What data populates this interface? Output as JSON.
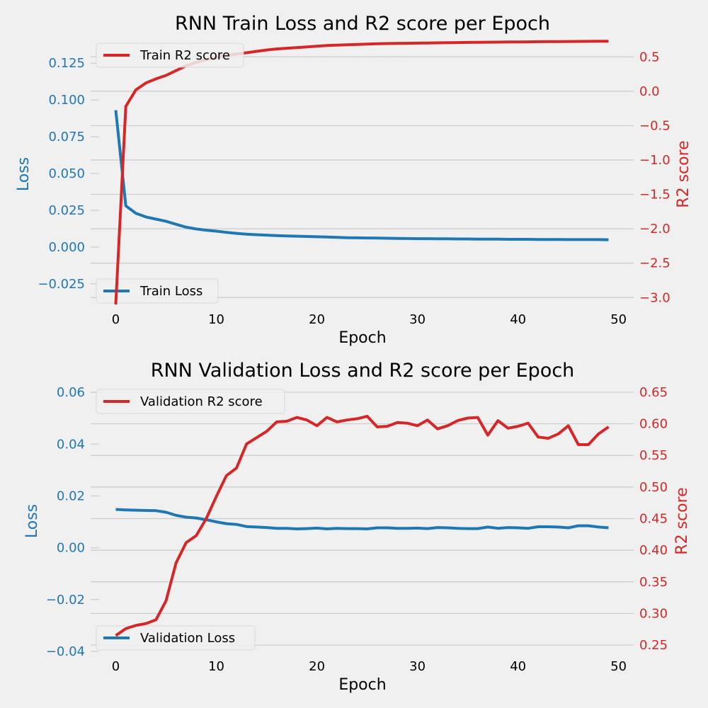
{
  "colors": {
    "background": "#f0f0f0",
    "grid": "#cbcbcb",
    "loss": "#1f77b4",
    "r2": "#d62728",
    "text": "#000000"
  },
  "chart_data": [
    {
      "type": "line",
      "title": "RNN Train Loss and R2 score per Epoch",
      "xlabel": "Epoch",
      "ylabel": "Loss",
      "y2label": "R2 score",
      "xlim": [
        -2.5,
        51.5
      ],
      "ylim": [
        -0.039,
        0.141
      ],
      "y2lim": [
        -3.1,
        0.75
      ],
      "xticks": [
        0,
        10,
        20,
        30,
        40,
        50
      ],
      "yticks": [
        -0.025,
        0.0,
        0.025,
        0.05,
        0.075,
        0.1,
        0.125
      ],
      "y2ticks": [
        -3.0,
        -2.5,
        -2.0,
        -1.5,
        -1.0,
        -0.5,
        0.0,
        0.5
      ],
      "xtick_labels": [
        "0",
        "10",
        "20",
        "30",
        "40",
        "50"
      ],
      "ytick_labels": [
        "−0.025",
        "0.000",
        "0.025",
        "0.050",
        "0.075",
        "0.100",
        "0.125"
      ],
      "y2tick_labels": [
        "−3.0",
        "−2.5",
        "−2.0",
        "−1.5",
        "−1.0",
        "−0.5",
        "0.0",
        "0.5"
      ],
      "grid": "horizontal (right axis)",
      "legend_loss": {
        "label": "Train Loss",
        "placement": "lower-left"
      },
      "legend_r2": {
        "label": "Train R2 score",
        "placement": "upper-left"
      },
      "series": [
        {
          "name": "Train Loss",
          "axis": "left",
          "x": [
            0,
            1,
            2,
            3,
            4,
            5,
            6,
            7,
            8,
            9,
            10,
            11,
            12,
            13,
            14,
            15,
            16,
            17,
            18,
            19,
            20,
            21,
            22,
            23,
            24,
            25,
            26,
            27,
            28,
            29,
            30,
            31,
            32,
            33,
            34,
            35,
            36,
            37,
            38,
            39,
            40,
            41,
            42,
            43,
            44,
            45,
            46,
            47,
            48,
            49
          ],
          "values": [
            0.093,
            0.028,
            0.023,
            0.0205,
            0.019,
            0.0175,
            0.0155,
            0.0135,
            0.0123,
            0.0115,
            0.0108,
            0.01,
            0.0093,
            0.0088,
            0.0084,
            0.0081,
            0.0078,
            0.0076,
            0.0074,
            0.0072,
            0.007,
            0.0068,
            0.0066,
            0.0064,
            0.0063,
            0.0062,
            0.0061,
            0.006,
            0.0059,
            0.0058,
            0.0057,
            0.0057,
            0.0056,
            0.0056,
            0.0055,
            0.0055,
            0.0054,
            0.0054,
            0.0054,
            0.0053,
            0.0053,
            0.0053,
            0.0052,
            0.0052,
            0.0052,
            0.0051,
            0.0051,
            0.0051,
            0.0051,
            0.005
          ]
        },
        {
          "name": "Train R2 score",
          "axis": "right",
          "x": [
            0,
            1,
            2,
            3,
            4,
            5,
            6,
            7,
            8,
            9,
            10,
            11,
            12,
            13,
            14,
            15,
            16,
            17,
            18,
            19,
            20,
            21,
            22,
            23,
            24,
            25,
            26,
            27,
            28,
            29,
            30,
            31,
            32,
            33,
            34,
            35,
            36,
            37,
            38,
            39,
            40,
            41,
            42,
            43,
            44,
            45,
            46,
            47,
            48,
            49
          ],
          "values": [
            -3.1,
            -0.22,
            0.02,
            0.12,
            0.18,
            0.23,
            0.3,
            0.37,
            0.42,
            0.46,
            0.49,
            0.52,
            0.54,
            0.56,
            0.58,
            0.6,
            0.615,
            0.625,
            0.635,
            0.645,
            0.655,
            0.665,
            0.67,
            0.675,
            0.68,
            0.685,
            0.69,
            0.693,
            0.695,
            0.698,
            0.7,
            0.702,
            0.704,
            0.706,
            0.708,
            0.71,
            0.712,
            0.713,
            0.714,
            0.716,
            0.717,
            0.718,
            0.72,
            0.721,
            0.722,
            0.723,
            0.724,
            0.725,
            0.726,
            0.727
          ]
        }
      ]
    },
    {
      "type": "line",
      "title": "RNN Validation Loss and R2 score per Epoch",
      "xlabel": "Epoch",
      "ylabel": "Loss",
      "y2label": "R2 score",
      "xlim": [
        -2.5,
        51.5
      ],
      "ylim": [
        -0.04,
        0.0625
      ],
      "y2lim": [
        0.24,
        0.66
      ],
      "xticks": [
        0,
        10,
        20,
        30,
        40,
        50
      ],
      "yticks": [
        -0.04,
        -0.02,
        0.0,
        0.02,
        0.04,
        0.06
      ],
      "y2ticks": [
        0.25,
        0.3,
        0.35,
        0.4,
        0.45,
        0.5,
        0.55,
        0.6,
        0.65
      ],
      "xtick_labels": [
        "0",
        "10",
        "20",
        "30",
        "40",
        "50"
      ],
      "ytick_labels": [
        "−0.04",
        "−0.02",
        "0.00",
        "0.02",
        "0.04",
        "0.06"
      ],
      "y2tick_labels": [
        "0.25",
        "0.30",
        "0.35",
        "0.40",
        "0.45",
        "0.50",
        "0.55",
        "0.60",
        "0.65"
      ],
      "grid": "horizontal (right axis)",
      "legend_loss": {
        "label": "Validation Loss",
        "placement": "lower-left"
      },
      "legend_r2": {
        "label": "Validation R2 score",
        "placement": "upper-left"
      },
      "series": [
        {
          "name": "Validation Loss",
          "axis": "left",
          "x": [
            0,
            1,
            2,
            3,
            4,
            5,
            6,
            7,
            8,
            9,
            10,
            11,
            12,
            13,
            14,
            15,
            16,
            17,
            18,
            19,
            20,
            21,
            22,
            23,
            24,
            25,
            26,
            27,
            28,
            29,
            30,
            31,
            32,
            33,
            34,
            35,
            36,
            37,
            38,
            39,
            40,
            41,
            42,
            43,
            44,
            45,
            46,
            47,
            48,
            49
          ],
          "values": [
            0.0148,
            0.0146,
            0.0145,
            0.0144,
            0.0143,
            0.0137,
            0.0125,
            0.0118,
            0.0115,
            0.0108,
            0.01,
            0.0093,
            0.009,
            0.0082,
            0.008,
            0.0078,
            0.0075,
            0.0075,
            0.0073,
            0.0074,
            0.0076,
            0.0073,
            0.0075,
            0.0074,
            0.0074,
            0.0073,
            0.0077,
            0.0077,
            0.0075,
            0.0075,
            0.0076,
            0.0074,
            0.0078,
            0.0077,
            0.0075,
            0.0074,
            0.0074,
            0.008,
            0.0075,
            0.0078,
            0.0077,
            0.0075,
            0.0081,
            0.0081,
            0.008,
            0.0077,
            0.0085,
            0.0085,
            0.008,
            0.0077
          ]
        },
        {
          "name": "Validation R2 score",
          "axis": "right",
          "x": [
            0,
            1,
            2,
            3,
            4,
            5,
            6,
            7,
            8,
            9,
            10,
            11,
            12,
            13,
            14,
            15,
            16,
            17,
            18,
            19,
            20,
            21,
            22,
            23,
            24,
            25,
            26,
            27,
            28,
            29,
            30,
            31,
            32,
            33,
            34,
            35,
            36,
            37,
            38,
            39,
            40,
            41,
            42,
            43,
            44,
            45,
            46,
            47,
            48,
            49
          ],
          "values": [
            0.265,
            0.276,
            0.281,
            0.284,
            0.29,
            0.32,
            0.38,
            0.412,
            0.423,
            0.45,
            0.485,
            0.518,
            0.53,
            0.568,
            0.578,
            0.588,
            0.603,
            0.604,
            0.61,
            0.606,
            0.597,
            0.61,
            0.603,
            0.606,
            0.608,
            0.612,
            0.595,
            0.596,
            0.602,
            0.601,
            0.597,
            0.606,
            0.592,
            0.597,
            0.605,
            0.609,
            0.61,
            0.582,
            0.605,
            0.593,
            0.596,
            0.601,
            0.579,
            0.577,
            0.584,
            0.597,
            0.567,
            0.567,
            0.584,
            0.595
          ]
        }
      ]
    }
  ]
}
